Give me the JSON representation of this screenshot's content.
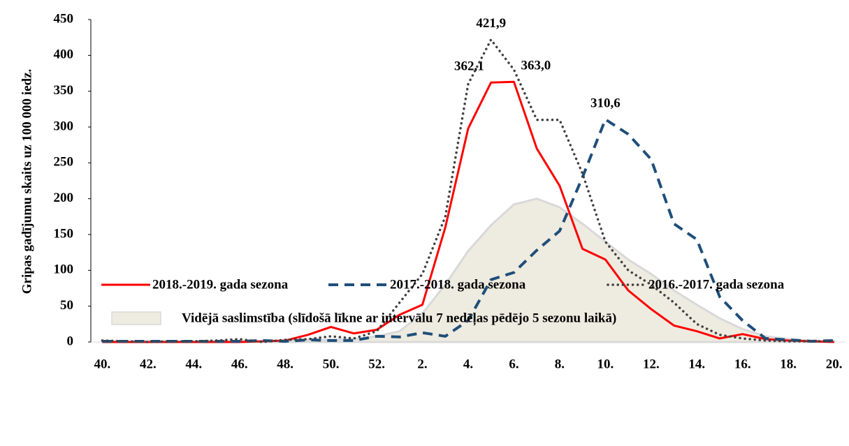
{
  "chart_data": {
    "type": "line",
    "y_label": "Gripas gadījumu skaits uz 100 000 iedz.",
    "categories": [
      "40.",
      null,
      "42.",
      null,
      "44.",
      null,
      "46.",
      null,
      "48.",
      null,
      "50.",
      null,
      "52.",
      null,
      "2.",
      null,
      "4.",
      null,
      "6.",
      null,
      "8.",
      null,
      "10.",
      null,
      "12.",
      null,
      "14.",
      null,
      "16.",
      null,
      "18.",
      null,
      "20."
    ],
    "ylim": [
      0,
      450
    ],
    "yticks": [
      0,
      50,
      100,
      150,
      200,
      250,
      300,
      350,
      400,
      450
    ],
    "grid": false,
    "series": [
      {
        "name": "2018.-2019. gada sezona",
        "color": "#ff0000",
        "style": "solid",
        "values": [
          0,
          0,
          0,
          0,
          0,
          0,
          0,
          1,
          2,
          10,
          21,
          12,
          17,
          38,
          52,
          160,
          298,
          362.1,
          363.0,
          270,
          218,
          130,
          115,
          72,
          46,
          23,
          15,
          5,
          11,
          4,
          2,
          1,
          0
        ],
        "value_labels": [
          null,
          null,
          null,
          null,
          null,
          null,
          null,
          null,
          null,
          null,
          null,
          null,
          null,
          null,
          null,
          null,
          null,
          "362,1",
          "363,0",
          null,
          null,
          null,
          null,
          null,
          null,
          null,
          null,
          null,
          null,
          null,
          null,
          null,
          null
        ]
      },
      {
        "name": "2017.-2018. gada sezona",
        "color": "#1f4e79",
        "style": "dashed",
        "values": [
          1,
          1,
          1,
          1,
          1,
          1,
          1,
          2,
          1,
          3,
          2,
          2,
          8,
          7,
          13,
          8,
          30,
          87,
          97,
          128,
          155,
          230,
          310.6,
          290,
          255,
          165,
          143,
          63,
          30,
          5,
          3,
          1,
          2
        ],
        "value_labels": [
          null,
          null,
          null,
          null,
          null,
          null,
          null,
          null,
          null,
          null,
          null,
          null,
          null,
          null,
          null,
          null,
          null,
          null,
          null,
          null,
          null,
          null,
          "310,6",
          null,
          null,
          null,
          null,
          null,
          null,
          null,
          null,
          null,
          null
        ]
      },
      {
        "name": "2016.-2017. gada sezona",
        "color": "#404040",
        "style": "dotted",
        "values": [
          2,
          1,
          0,
          1,
          1,
          2,
          4,
          0,
          3,
          4,
          8,
          5,
          15,
          55,
          95,
          175,
          360,
          421.9,
          380,
          310,
          310,
          235,
          140,
          100,
          80,
          55,
          25,
          10,
          5,
          2,
          1,
          1,
          1
        ],
        "value_labels": [
          null,
          null,
          null,
          null,
          null,
          null,
          null,
          null,
          null,
          null,
          null,
          null,
          null,
          null,
          null,
          null,
          null,
          "421,9",
          null,
          null,
          null,
          null,
          null,
          null,
          null,
          null,
          null,
          null,
          null,
          null,
          null,
          null,
          null
        ]
      },
      {
        "name": "Vidējā saslimstība (slīdošā līkne ar intervālu 7 nedēļas pēdējo 5 sezonu laikā)",
        "color": "#eeebe0",
        "style": "area",
        "values": [
          1,
          1,
          1,
          1,
          1,
          1,
          1,
          1,
          2,
          3,
          3,
          4,
          8,
          15,
          40,
          80,
          127,
          163,
          192,
          200,
          188,
          165,
          140,
          115,
          95,
          72,
          52,
          33,
          18,
          8,
          4,
          2,
          1
        ]
      }
    ]
  }
}
